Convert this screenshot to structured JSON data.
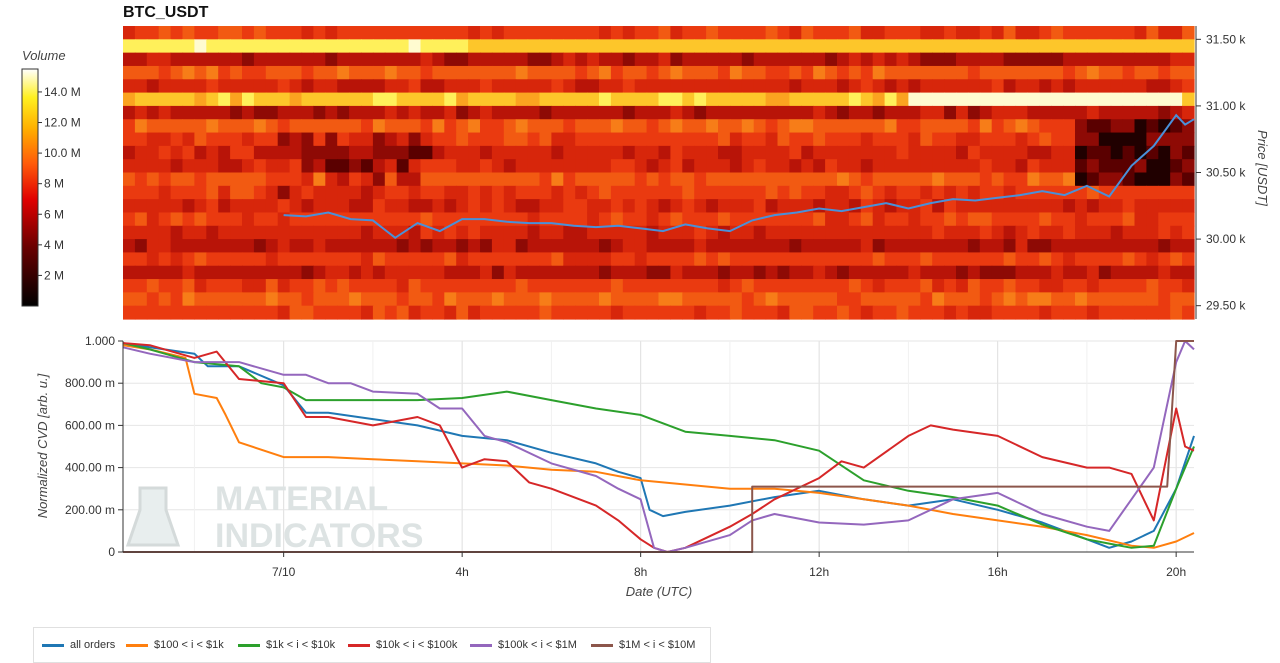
{
  "title": "BTC_USDT",
  "colorbar": {
    "label": "Volume",
    "ticks": [
      "14.0 M",
      "12.0 M",
      "10.0 M",
      "8 M",
      "6 M",
      "4 M",
      "2 M"
    ],
    "tick_values": [
      14,
      12,
      10,
      8,
      6,
      4,
      2
    ],
    "range": [
      0,
      15.5
    ]
  },
  "legend": [
    {
      "label": "all orders",
      "color": "#1f77b4"
    },
    {
      "label": "$100 < i < $1k",
      "color": "#ff7f0e"
    },
    {
      "label": "$1k < i < $10k",
      "color": "#2ca02c"
    },
    {
      "label": "$10k < i < $100k",
      "color": "#d62728"
    },
    {
      "label": "$100k < i < $1M",
      "color": "#9467bd"
    },
    {
      "label": "$1M < i < $10M",
      "color": "#8c564b"
    }
  ],
  "watermark": {
    "line1": "MATERIAL",
    "line2": "INDICATORS"
  },
  "chart_data": [
    {
      "type": "heatmap",
      "title": "BTC_USDT",
      "ylabel": "Price [USDT]",
      "y_tick_labels": [
        "31.50 k",
        "31.00 k",
        "30.50 k",
        "30.00 k",
        "29.50 k"
      ],
      "y_tick_values": [
        31500,
        31000,
        30500,
        30000,
        29500
      ],
      "ylim": [
        29400,
        31600
      ],
      "colorbar_label": "Volume",
      "price_line": {
        "color": "#4a90d9",
        "x": [
          0,
          0.5,
          1,
          1.5,
          2,
          2.5,
          3,
          3.5,
          4,
          4.5,
          5,
          5.5,
          6,
          6.5,
          7,
          7.5,
          8,
          8.5,
          9,
          9.5,
          10,
          10.5,
          11,
          11.5,
          12,
          12.5,
          13,
          13.5,
          14,
          14.5,
          15,
          15.5,
          16,
          16.5,
          17,
          17.5,
          18,
          18.5,
          19,
          19.5,
          20,
          20.2,
          20.4
        ],
        "y": [
          30180,
          30170,
          30200,
          30150,
          30140,
          30010,
          30120,
          30060,
          30150,
          30150,
          30130,
          30120,
          30120,
          30100,
          30090,
          30100,
          30080,
          30060,
          30110,
          30080,
          30060,
          30140,
          30180,
          30200,
          30230,
          30210,
          30240,
          30270,
          30230,
          30270,
          30300,
          30290,
          30310,
          30330,
          30360,
          30330,
          30400,
          30320,
          30550,
          30700,
          30930,
          30860,
          30900
        ]
      }
    },
    {
      "type": "line",
      "xlabel": "Date (UTC)",
      "ylabel": "Normalized CVD [arb. u.]",
      "x_tick_labels": [
        "7/10",
        "4h",
        "8h",
        "12h",
        "16h",
        "20h"
      ],
      "x_tick_values": [
        0,
        4,
        8,
        12,
        16,
        20
      ],
      "xlim": [
        -3.6,
        20.4
      ],
      "y_tick_labels": [
        "1.000",
        "800.00 m",
        "600.00 m",
        "400.00 m",
        "200.00 m",
        "0"
      ],
      "y_tick_values": [
        1,
        0.8,
        0.6,
        0.4,
        0.2,
        0
      ],
      "ylim": [
        0,
        1
      ],
      "series": [
        {
          "name": "all orders",
          "x": [
            -3.6,
            -3,
            -2,
            -1.7,
            -1,
            0,
            0.5,
            1,
            2,
            3,
            4,
            5,
            6,
            7,
            7.5,
            8,
            8.2,
            8.5,
            9,
            10,
            11,
            12,
            13,
            14,
            15,
            16,
            17,
            18,
            18.5,
            19,
            19.5,
            20,
            20.4
          ],
          "y": [
            0.99,
            0.97,
            0.94,
            0.88,
            0.88,
            0.79,
            0.66,
            0.66,
            0.63,
            0.6,
            0.55,
            0.53,
            0.47,
            0.42,
            0.38,
            0.35,
            0.2,
            0.17,
            0.19,
            0.22,
            0.26,
            0.29,
            0.25,
            0.22,
            0.25,
            0.2,
            0.14,
            0.06,
            0.02,
            0.05,
            0.1,
            0.3,
            0.55
          ]
        },
        {
          "name": "$100 < i < $1k",
          "x": [
            -3.6,
            -3,
            -2.2,
            -2,
            -1.5,
            -1.3,
            -1,
            0,
            1,
            2,
            3,
            4,
            5,
            6,
            7,
            8,
            9,
            10,
            11,
            12,
            13,
            14,
            15,
            16,
            17,
            18,
            19,
            19.5,
            20,
            20.4
          ],
          "y": [
            0.98,
            0.96,
            0.92,
            0.75,
            0.73,
            0.65,
            0.52,
            0.45,
            0.45,
            0.44,
            0.43,
            0.42,
            0.41,
            0.39,
            0.38,
            0.34,
            0.32,
            0.3,
            0.3,
            0.28,
            0.25,
            0.22,
            0.18,
            0.15,
            0.12,
            0.08,
            0.03,
            0.02,
            0.05,
            0.09
          ]
        },
        {
          "name": "$1k < i < $10k",
          "x": [
            -3.6,
            -3,
            -2,
            -1,
            -0.5,
            0,
            0.5,
            1,
            2,
            3,
            4,
            5,
            6,
            7,
            8,
            9,
            10,
            11,
            12,
            13,
            14,
            15,
            16,
            17,
            18,
            18.5,
            19,
            19.5,
            20,
            20.4
          ],
          "y": [
            0.99,
            0.96,
            0.9,
            0.88,
            0.8,
            0.78,
            0.72,
            0.72,
            0.72,
            0.72,
            0.73,
            0.76,
            0.72,
            0.68,
            0.65,
            0.57,
            0.55,
            0.53,
            0.48,
            0.34,
            0.29,
            0.26,
            0.22,
            0.13,
            0.06,
            0.04,
            0.02,
            0.03,
            0.3,
            0.5
          ]
        },
        {
          "name": "$10k < i < $100k",
          "x": [
            -3.6,
            -3,
            -2,
            -1.5,
            -1,
            0,
            0.5,
            1,
            2,
            3,
            3.5,
            4,
            4.5,
            5,
            5.5,
            6,
            7,
            7.5,
            8,
            8.3,
            8.6,
            9,
            10,
            10.5,
            11,
            12,
            12.5,
            13,
            14,
            14.5,
            15,
            16,
            17,
            18,
            18.5,
            19,
            19.5,
            20,
            20.2,
            20.4
          ],
          "y": [
            0.99,
            0.98,
            0.92,
            0.95,
            0.82,
            0.8,
            0.64,
            0.64,
            0.6,
            0.64,
            0.6,
            0.4,
            0.44,
            0.43,
            0.33,
            0.3,
            0.22,
            0.15,
            0.06,
            0.02,
            0.0,
            0.02,
            0.12,
            0.18,
            0.25,
            0.35,
            0.43,
            0.4,
            0.55,
            0.6,
            0.58,
            0.55,
            0.45,
            0.4,
            0.4,
            0.37,
            0.15,
            0.68,
            0.5,
            0.48
          ]
        },
        {
          "name": "$100k < i < $1M",
          "x": [
            -3.6,
            -3,
            -2,
            -1,
            0,
            0.5,
            1,
            1.5,
            2,
            3,
            3.5,
            4,
            4.5,
            5,
            6,
            7,
            7.5,
            8,
            8.3,
            8.6,
            9,
            10,
            10.5,
            11,
            12,
            13,
            14,
            15,
            16,
            17,
            18,
            18.5,
            19,
            19.5,
            20,
            20.2,
            20.4
          ],
          "y": [
            0.97,
            0.94,
            0.9,
            0.9,
            0.84,
            0.84,
            0.8,
            0.8,
            0.76,
            0.75,
            0.68,
            0.68,
            0.55,
            0.52,
            0.42,
            0.36,
            0.3,
            0.25,
            0.02,
            0.0,
            0.02,
            0.08,
            0.15,
            0.18,
            0.14,
            0.13,
            0.15,
            0.25,
            0.28,
            0.18,
            0.12,
            0.1,
            0.25,
            0.4,
            0.9,
            1.0,
            0.96
          ]
        },
        {
          "name": "$1M < i < $10M",
          "x": [
            -3.6,
            10.5,
            10.5,
            19.8,
            20,
            20.2,
            20.4
          ],
          "y": [
            0,
            0,
            0.31,
            0.31,
            1.0,
            1.0,
            1.0
          ]
        }
      ]
    }
  ]
}
